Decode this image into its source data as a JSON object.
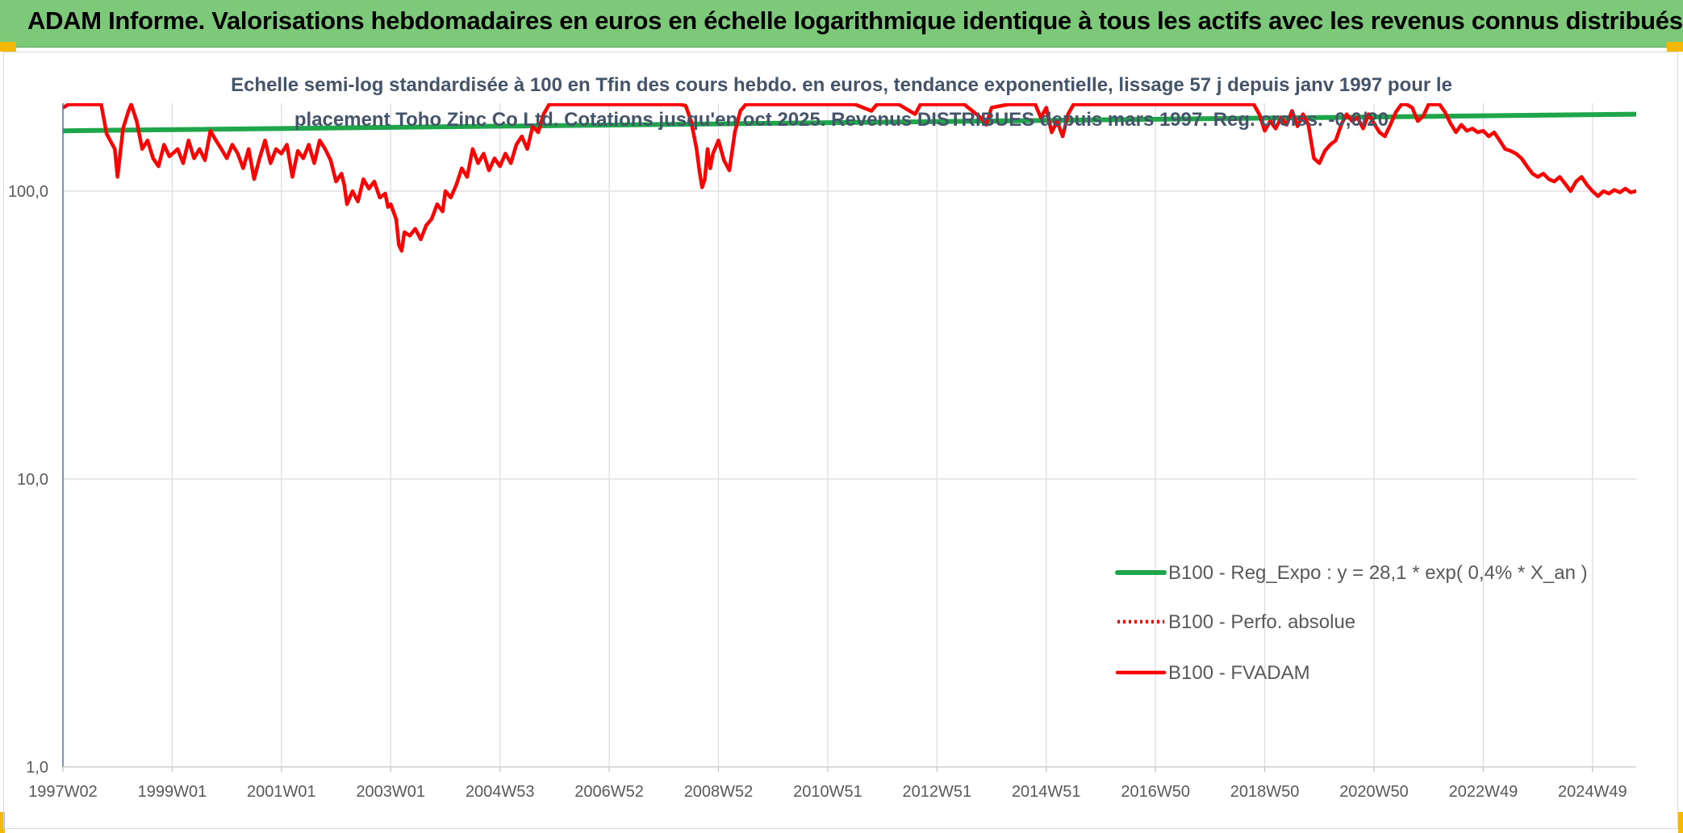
{
  "header": {
    "title": "ADAM Informe. Valorisations hebdomadaires en euros en échelle logarithmique identique à tous les actifs avec les revenus connus distribués"
  },
  "chart_data": {
    "type": "line",
    "title_lines": [
      "Echelle semi-log standardisée à 100 en Tfin des cours hebdo. en euros, tendance exponentielle, lissage 57 j depuis janv 1997 pour le",
      "placement Toho Zinc Co Ltd. Cotations jusqu'en oct 2025. Revenus DISTRIBUES depuis mars 1997. Reg. croiss. -0,0/20"
    ],
    "y_scale": "log",
    "ylim": [
      1,
      200
    ],
    "y_ticks": [
      {
        "value": 1,
        "label": "1,0"
      },
      {
        "value": 10,
        "label": "10,0"
      },
      {
        "value": 100,
        "label": "100,0"
      }
    ],
    "x_range": [
      1997.0,
      2025.8
    ],
    "x_ticks": [
      {
        "value": 1997.0,
        "label": "1997W02"
      },
      {
        "value": 1999.0,
        "label": "1999W01"
      },
      {
        "value": 2001.0,
        "label": "2001W01"
      },
      {
        "value": 2003.0,
        "label": "2003W01"
      },
      {
        "value": 2005.0,
        "label": "2004W53"
      },
      {
        "value": 2007.0,
        "label": "2006W52"
      },
      {
        "value": 2009.0,
        "label": "2008W52"
      },
      {
        "value": 2011.0,
        "label": "2010W51"
      },
      {
        "value": 2013.0,
        "label": "2012W51"
      },
      {
        "value": 2015.0,
        "label": "2014W51"
      },
      {
        "value": 2017.0,
        "label": "2016W50"
      },
      {
        "value": 2019.0,
        "label": "2018W50"
      },
      {
        "value": 2021.0,
        "label": "2020W50"
      },
      {
        "value": 2023.0,
        "label": "2022W49"
      },
      {
        "value": 2025.0,
        "label": "2024W49"
      }
    ],
    "grid": true,
    "legend_position": "lower-right",
    "series": [
      {
        "name": "B100 - Reg_Expo : y = 28,1 * exp( 0,4% *  X_an )",
        "color": "#1fa64a",
        "style": "solid",
        "points": [
          [
            1997.0,
            162
          ],
          [
            2025.8,
            185
          ]
        ]
      },
      {
        "name": "B100 - Perfo. absolue",
        "color": "#ff0000",
        "style": "dotted",
        "points": []
      },
      {
        "name": "B100 - FVADAM",
        "color": "#ff0000",
        "style": "solid",
        "points": [
          [
            1997.0,
            195
          ],
          [
            1997.1,
            200
          ],
          [
            1997.3,
            200
          ],
          [
            1997.7,
            200
          ],
          [
            1997.8,
            158
          ],
          [
            1997.95,
            140
          ],
          [
            1998.0,
            112
          ],
          [
            1998.1,
            165
          ],
          [
            1998.2,
            190
          ],
          [
            1998.25,
            200
          ],
          [
            1998.35,
            175
          ],
          [
            1998.45,
            140
          ],
          [
            1998.55,
            150
          ],
          [
            1998.65,
            130
          ],
          [
            1998.75,
            122
          ],
          [
            1998.85,
            145
          ],
          [
            1998.95,
            132
          ],
          [
            1999.1,
            140
          ],
          [
            1999.2,
            125
          ],
          [
            1999.3,
            150
          ],
          [
            1999.4,
            130
          ],
          [
            1999.5,
            140
          ],
          [
            1999.6,
            128
          ],
          [
            1999.7,
            162
          ],
          [
            1999.8,
            150
          ],
          [
            1999.9,
            140
          ],
          [
            2000.0,
            130
          ],
          [
            2000.1,
            145
          ],
          [
            2000.2,
            135
          ],
          [
            2000.3,
            120
          ],
          [
            2000.4,
            140
          ],
          [
            2000.5,
            110
          ],
          [
            2000.6,
            130
          ],
          [
            2000.7,
            150
          ],
          [
            2000.8,
            125
          ],
          [
            2000.9,
            140
          ],
          [
            2001.0,
            135
          ],
          [
            2001.1,
            145
          ],
          [
            2001.2,
            112
          ],
          [
            2001.3,
            138
          ],
          [
            2001.4,
            130
          ],
          [
            2001.5,
            145
          ],
          [
            2001.6,
            125
          ],
          [
            2001.7,
            150
          ],
          [
            2001.8,
            140
          ],
          [
            2001.9,
            128
          ],
          [
            2002.0,
            108
          ],
          [
            2002.1,
            115
          ],
          [
            2002.15,
            105
          ],
          [
            2002.2,
            90
          ],
          [
            2002.3,
            100
          ],
          [
            2002.4,
            92
          ],
          [
            2002.5,
            110
          ],
          [
            2002.6,
            102
          ],
          [
            2002.7,
            108
          ],
          [
            2002.8,
            95
          ],
          [
            2002.9,
            98
          ],
          [
            2002.95,
            88
          ],
          [
            2003.0,
            90
          ],
          [
            2003.1,
            80
          ],
          [
            2003.15,
            65
          ],
          [
            2003.2,
            62
          ],
          [
            2003.25,
            72
          ],
          [
            2003.35,
            70
          ],
          [
            2003.45,
            74
          ],
          [
            2003.55,
            68
          ],
          [
            2003.65,
            76
          ],
          [
            2003.75,
            80
          ],
          [
            2003.85,
            90
          ],
          [
            2003.95,
            85
          ],
          [
            2004.0,
            100
          ],
          [
            2004.1,
            95
          ],
          [
            2004.2,
            105
          ],
          [
            2004.3,
            120
          ],
          [
            2004.4,
            112
          ],
          [
            2004.5,
            140
          ],
          [
            2004.6,
            125
          ],
          [
            2004.7,
            135
          ],
          [
            2004.8,
            118
          ],
          [
            2004.9,
            130
          ],
          [
            2005.0,
            122
          ],
          [
            2005.1,
            135
          ],
          [
            2005.2,
            125
          ],
          [
            2005.3,
            145
          ],
          [
            2005.4,
            155
          ],
          [
            2005.5,
            140
          ],
          [
            2005.6,
            168
          ],
          [
            2005.7,
            160
          ],
          [
            2005.8,
            185
          ],
          [
            2005.9,
            200
          ],
          [
            2006.0,
            200
          ],
          [
            2006.5,
            200
          ],
          [
            2007.0,
            200
          ],
          [
            2007.5,
            200
          ],
          [
            2008.0,
            200
          ],
          [
            2008.3,
            200
          ],
          [
            2008.4,
            198
          ],
          [
            2008.5,
            175
          ],
          [
            2008.6,
            140
          ],
          [
            2008.65,
            118
          ],
          [
            2008.7,
            103
          ],
          [
            2008.75,
            110
          ],
          [
            2008.8,
            140
          ],
          [
            2008.85,
            120
          ],
          [
            2008.9,
            135
          ],
          [
            2009.0,
            150
          ],
          [
            2009.1,
            128
          ],
          [
            2009.2,
            118
          ],
          [
            2009.3,
            160
          ],
          [
            2009.4,
            190
          ],
          [
            2009.5,
            200
          ],
          [
            2010.0,
            200
          ],
          [
            2010.5,
            200
          ],
          [
            2011.0,
            200
          ],
          [
            2011.5,
            200
          ],
          [
            2011.8,
            190
          ],
          [
            2011.9,
            200
          ],
          [
            2012.3,
            200
          ],
          [
            2012.6,
            185
          ],
          [
            2012.7,
            200
          ],
          [
            2013.0,
            200
          ],
          [
            2013.5,
            200
          ],
          [
            2013.8,
            180
          ],
          [
            2013.9,
            170
          ],
          [
            2014.0,
            195
          ],
          [
            2014.3,
            200
          ],
          [
            2014.8,
            200
          ],
          [
            2014.9,
            180
          ],
          [
            2015.0,
            195
          ],
          [
            2015.1,
            160
          ],
          [
            2015.2,
            175
          ],
          [
            2015.3,
            155
          ],
          [
            2015.4,
            185
          ],
          [
            2015.5,
            200
          ],
          [
            2016.0,
            200
          ],
          [
            2016.5,
            200
          ],
          [
            2017.0,
            200
          ],
          [
            2017.5,
            200
          ],
          [
            2018.0,
            200
          ],
          [
            2018.5,
            200
          ],
          [
            2018.8,
            200
          ],
          [
            2018.9,
            185
          ],
          [
            2019.0,
            162
          ],
          [
            2019.1,
            175
          ],
          [
            2019.2,
            165
          ],
          [
            2019.3,
            180
          ],
          [
            2019.4,
            170
          ],
          [
            2019.5,
            190
          ],
          [
            2019.6,
            168
          ],
          [
            2019.7,
            185
          ],
          [
            2019.8,
            170
          ],
          [
            2019.9,
            130
          ],
          [
            2020.0,
            125
          ],
          [
            2020.1,
            138
          ],
          [
            2020.2,
            145
          ],
          [
            2020.3,
            150
          ],
          [
            2020.4,
            170
          ],
          [
            2020.5,
            185
          ],
          [
            2020.6,
            175
          ],
          [
            2020.7,
            180
          ],
          [
            2020.8,
            165
          ],
          [
            2020.9,
            185
          ],
          [
            2021.0,
            172
          ],
          [
            2021.1,
            160
          ],
          [
            2021.2,
            155
          ],
          [
            2021.3,
            170
          ],
          [
            2021.4,
            188
          ],
          [
            2021.5,
            200
          ],
          [
            2021.6,
            200
          ],
          [
            2021.7,
            195
          ],
          [
            2021.8,
            175
          ],
          [
            2021.9,
            182
          ],
          [
            2022.0,
            200
          ],
          [
            2022.2,
            200
          ],
          [
            2022.3,
            188
          ],
          [
            2022.4,
            172
          ],
          [
            2022.5,
            160
          ],
          [
            2022.6,
            170
          ],
          [
            2022.7,
            162
          ],
          [
            2022.8,
            165
          ],
          [
            2022.9,
            160
          ],
          [
            2023.0,
            162
          ],
          [
            2023.1,
            155
          ],
          [
            2023.2,
            160
          ],
          [
            2023.3,
            150
          ],
          [
            2023.4,
            140
          ],
          [
            2023.5,
            138
          ],
          [
            2023.6,
            135
          ],
          [
            2023.7,
            130
          ],
          [
            2023.8,
            122
          ],
          [
            2023.9,
            115
          ],
          [
            2024.0,
            112
          ],
          [
            2024.1,
            115
          ],
          [
            2024.2,
            110
          ],
          [
            2024.3,
            108
          ],
          [
            2024.4,
            112
          ],
          [
            2024.5,
            106
          ],
          [
            2024.6,
            100
          ],
          [
            2024.7,
            108
          ],
          [
            2024.8,
            112
          ],
          [
            2024.9,
            105
          ],
          [
            2025.0,
            100
          ],
          [
            2025.1,
            96
          ],
          [
            2025.2,
            100
          ],
          [
            2025.3,
            98
          ],
          [
            2025.4,
            101
          ],
          [
            2025.5,
            99
          ],
          [
            2025.6,
            102
          ],
          [
            2025.7,
            99
          ],
          [
            2025.8,
            100
          ]
        ]
      }
    ]
  }
}
